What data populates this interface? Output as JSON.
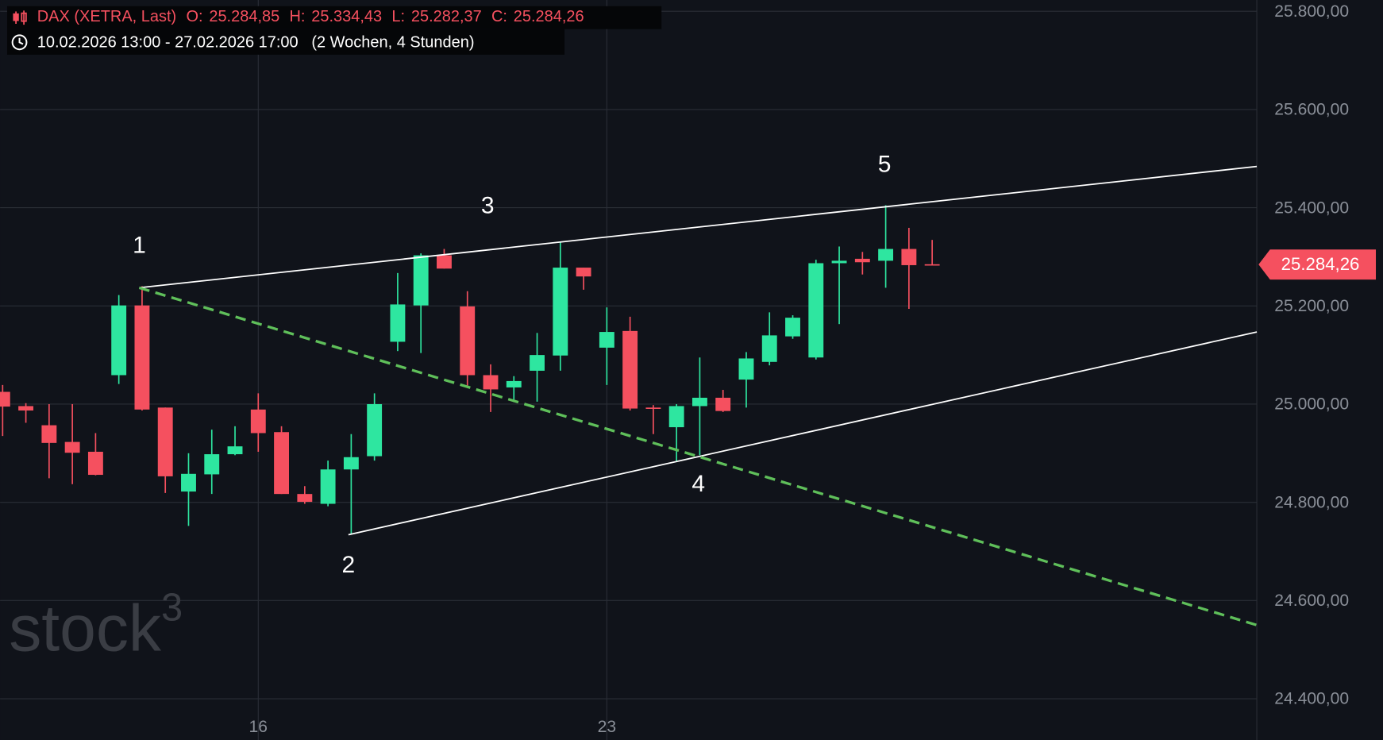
{
  "chart_data": {
    "type": "candlestick",
    "header": {
      "name": "DAX (XETRA, Last)",
      "ohlc": [
        {
          "key": "O:",
          "label": "25.284,85"
        },
        {
          "key": "H:",
          "label": "25.334,43"
        },
        {
          "key": "L:",
          "label": "25.282,37"
        },
        {
          "key": "C:",
          "label": "25.284,26"
        }
      ],
      "range": "10.02.2026 13:00 - 27.02.2026 17:00",
      "duration": "(2 Wochen, 4 Stunden)"
    },
    "watermark": {
      "text": "stock",
      "sup": "3"
    },
    "categories": [
      null,
      null,
      null,
      null,
      null,
      null,
      null,
      null,
      null,
      null,
      null,
      "16",
      null,
      null,
      null,
      null,
      null,
      null,
      null,
      null,
      null,
      null,
      null,
      null,
      null,
      null,
      "23",
      null,
      null,
      null,
      null,
      null,
      null,
      null,
      null,
      null,
      null,
      null,
      null,
      null,
      null
    ],
    "open": [
      25025,
      24996,
      24957,
      24923,
      24903,
      25059,
      25201,
      24993,
      24822,
      24857,
      24898,
      24989,
      24943,
      24817,
      24797,
      24867,
      24894,
      25127,
      25201,
      25303,
      25199,
      25059,
      25034,
      25068,
      25099,
      25278,
      25115,
      25149,
      24993,
      24953,
      24996,
      25013,
      25050,
      25086,
      25138,
      25095,
      25287,
      25296,
      25292,
      25316,
      25284.85
    ],
    "high": [
      25039,
      25002,
      25000,
      25000,
      24941,
      25222,
      25240,
      24993,
      24900,
      24948,
      24955,
      25022,
      24955,
      24833,
      24885,
      24939,
      25022,
      25267,
      25307,
      25316,
      25230,
      25081,
      25057,
      25145,
      25330,
      25278,
      25197,
      25178,
      24998,
      25000,
      25095,
      25029,
      25106,
      25187,
      25181,
      25294,
      25321,
      25310,
      25405,
      25359,
      25334.43
    ],
    "low": [
      24935,
      24962,
      24849,
      24837,
      24855,
      25041,
      24987,
      24819,
      24752,
      24817,
      24896,
      24903,
      24817,
      24797,
      24792,
      24735,
      24885,
      25108,
      25104,
      25276,
      25034,
      24984,
      25004,
      25005,
      25068,
      25233,
      25039,
      24987,
      24939,
      24883,
      24896,
      24984,
      24993,
      25079,
      25133,
      25091,
      25163,
      25264,
      25237,
      25194,
      25282.37
    ],
    "close": [
      24995,
      24987,
      24921,
      24901,
      24856,
      25201,
      24989,
      24853,
      24858,
      24898,
      24914,
      24941,
      24817,
      24801,
      24867,
      24892,
      25000,
      25203,
      25303,
      25276,
      25059,
      25030,
      25047,
      25100,
      25278,
      25260,
      25147,
      24991,
      24991,
      24996,
      25013,
      24986,
      25093,
      25140,
      25176,
      25287,
      25292,
      25289,
      25316,
      25283,
      25284.26
    ],
    "up_color": "#2ee6a0",
    "down_color": "#f5505f",
    "xlim": [
      -0.11,
      53.97
    ],
    "ylim": [
      24316,
      25823
    ],
    "yticks": [
      {
        "value": 24400,
        "label": "24.400,00"
      },
      {
        "value": 24600,
        "label": "24.600,00"
      },
      {
        "value": 24800,
        "label": "24.800,00"
      },
      {
        "value": 25000,
        "label": "25.000,00"
      },
      {
        "value": 25200,
        "label": "25.200,00"
      },
      {
        "value": 25400,
        "label": "25.400,00"
      },
      {
        "value": 25600,
        "label": "25.600,00"
      },
      {
        "value": 25800,
        "label": "25.800,00"
      }
    ],
    "grid": true,
    "last_price": {
      "value": 25284.26,
      "label": "25.284,26"
    },
    "lines": [
      {
        "x": [
          5.88,
          53.97
        ],
        "y": [
          25237,
          25484
        ],
        "dashed": false,
        "color": "#ffffff"
      },
      {
        "x": [
          14.88,
          53.97
        ],
        "y": [
          24734,
          25147
        ],
        "dashed": false,
        "color": "#ffffff"
      },
      {
        "x": [
          5.88,
          53.97
        ],
        "y": [
          25237,
          24550
        ],
        "dashed": true,
        "color": "#5fbf5a"
      }
    ],
    "annotations": [
      {
        "text": "1",
        "x": 5.88,
        "y": 25321
      },
      {
        "text": "2",
        "x": 14.88,
        "y": 24670
      },
      {
        "text": "3",
        "x": 20.87,
        "y": 25402
      },
      {
        "text": "4",
        "x": 29.94,
        "y": 24835
      },
      {
        "text": "5",
        "x": 37.95,
        "y": 25486
      }
    ]
  }
}
